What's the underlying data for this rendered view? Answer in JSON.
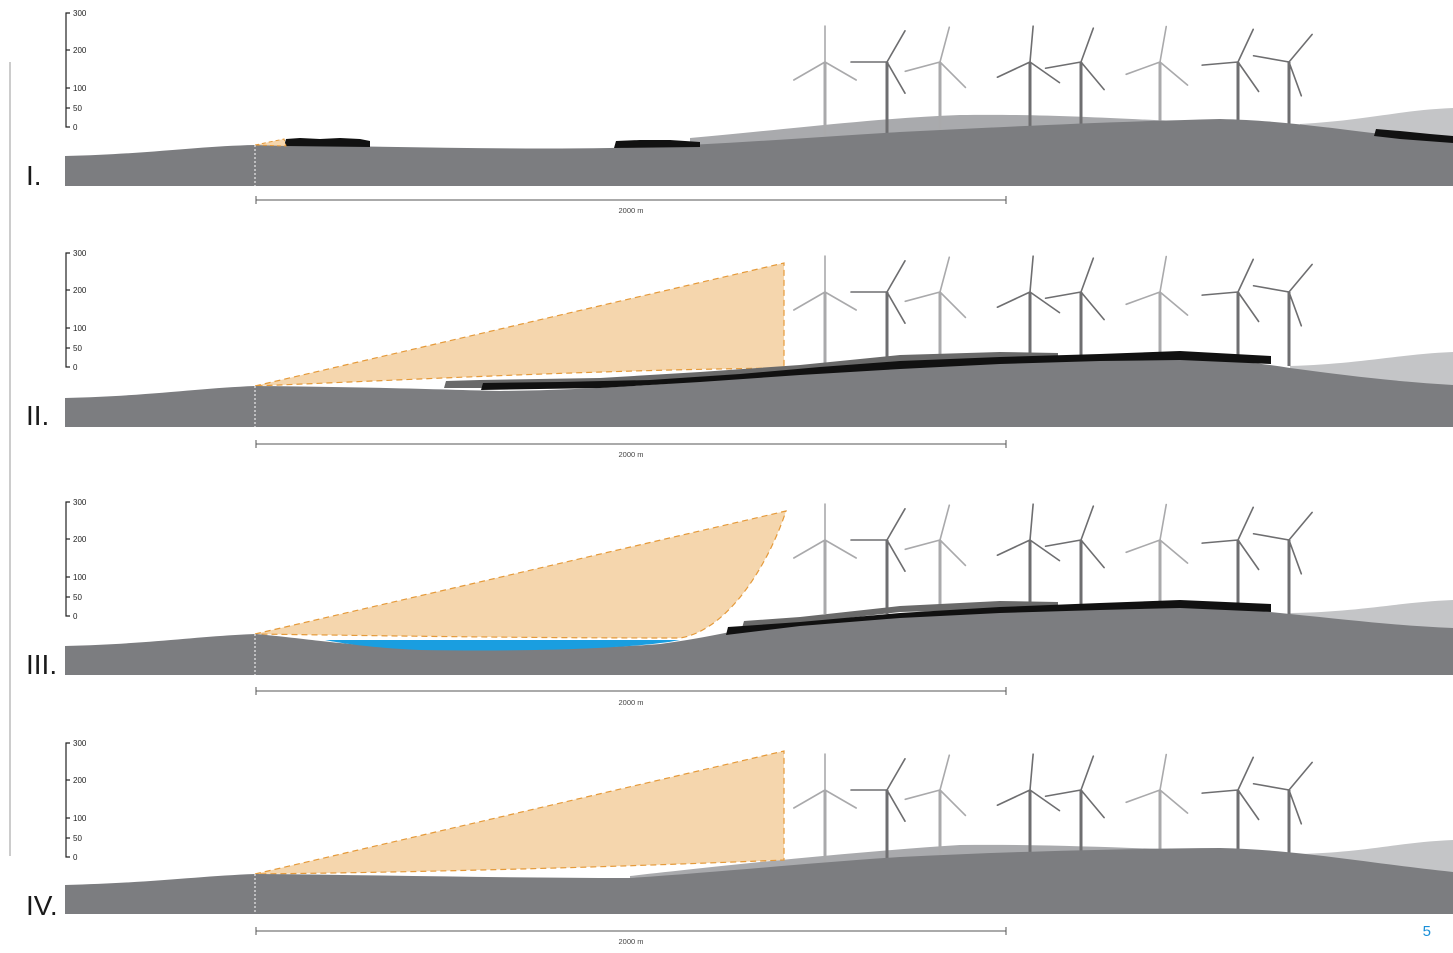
{
  "panels": [
    {
      "id": "I",
      "label": "I.",
      "scale_label": "2000 m",
      "axis": {
        "ticks": [
          "300",
          "200",
          "100",
          "50",
          "0"
        ]
      }
    },
    {
      "id": "II",
      "label": "II.",
      "scale_label": "2000 m",
      "axis": {
        "ticks": [
          "300",
          "200",
          "100",
          "50",
          "0"
        ]
      }
    },
    {
      "id": "III",
      "label": "III.",
      "scale_label": "2000 m",
      "axis": {
        "ticks": [
          "300",
          "200",
          "100",
          "50",
          "0"
        ]
      }
    },
    {
      "id": "IV",
      "label": "IV.",
      "scale_label": "2000 m",
      "axis": {
        "ticks": [
          "300",
          "200",
          "100",
          "50",
          "0"
        ]
      }
    }
  ],
  "page_number": "5",
  "colors": {
    "terrain": "#7c7d80",
    "terrain_back": "#a9aaad",
    "terrain_far": "#c4c5c7",
    "vegetation": "#111111",
    "vegetation_back": "#6a6a6a",
    "visibility_zone": "#f5d6ad",
    "visibility_zone_stroke": "#e59a3a",
    "water": "#1a9ee0",
    "turbine_dark": "#6e6e70",
    "turbine_light": "#a9a9ab",
    "accent": "#1a8fd8"
  },
  "icons": {
    "turbine": "wind-turbine-icon"
  }
}
